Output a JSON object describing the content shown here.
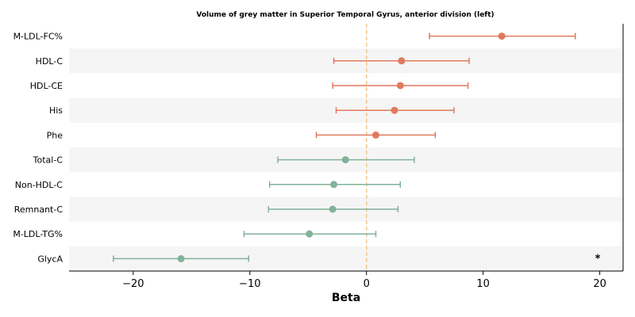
{
  "chart_data": {
    "type": "forest",
    "title": "Volume of grey matter in Superior Temporal Gyrus, anterior division (left)",
    "xlabel": "Beta",
    "xlim": [
      -25.5,
      22
    ],
    "xticks": [
      -20,
      -10,
      0,
      10,
      20
    ],
    "xtick_labels": [
      "−20",
      "−10",
      "0",
      "10",
      "20"
    ],
    "reference_line": 0,
    "colors": {
      "positive": "#e07a5f",
      "negative": "#81b29a",
      "reference": "#f2c68c",
      "band": "#f5f5f5"
    },
    "rows": [
      {
        "label": "M-LDL-FC%",
        "beta": 11.6,
        "lo": 5.4,
        "hi": 17.9,
        "sig": ""
      },
      {
        "label": "HDL-C",
        "beta": 3.0,
        "lo": -2.8,
        "hi": 8.8,
        "sig": ""
      },
      {
        "label": "HDL-CE",
        "beta": 2.9,
        "lo": -2.9,
        "hi": 8.7,
        "sig": ""
      },
      {
        "label": "His",
        "beta": 2.4,
        "lo": -2.6,
        "hi": 7.5,
        "sig": ""
      },
      {
        "label": "Phe",
        "beta": 0.8,
        "lo": -4.3,
        "hi": 5.9,
        "sig": ""
      },
      {
        "label": "Total-C",
        "beta": -1.8,
        "lo": -7.6,
        "hi": 4.1,
        "sig": ""
      },
      {
        "label": "Non-HDL-C",
        "beta": -2.8,
        "lo": -8.3,
        "hi": 2.9,
        "sig": ""
      },
      {
        "label": "Remnant-C",
        "beta": -2.9,
        "lo": -8.4,
        "hi": 2.7,
        "sig": ""
      },
      {
        "label": "M-LDL-TG%",
        "beta": -4.9,
        "lo": -10.5,
        "hi": 0.8,
        "sig": ""
      },
      {
        "label": "GlycA",
        "beta": -15.9,
        "lo": -21.7,
        "hi": -10.1,
        "sig": "*"
      }
    ]
  }
}
